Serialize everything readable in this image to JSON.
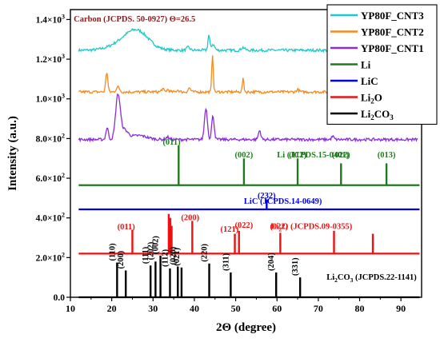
{
  "chart_data": {
    "type": "line",
    "xlabel": "2Θ (degree)",
    "ylabel": "Intensity (a.u.)",
    "xlim": [
      10,
      95
    ],
    "ylim": [
      0,
      1450
    ],
    "x_ticks": [
      10,
      20,
      30,
      40,
      50,
      60,
      70,
      80,
      90
    ],
    "y_ticks": [
      {
        "value": 0,
        "label": "0.0"
      },
      {
        "value": 200,
        "mant": "2.0×10",
        "exp": "2"
      },
      {
        "value": 400,
        "mant": "4.0×10",
        "exp": "2"
      },
      {
        "value": 600,
        "mant": "6.0×10",
        "exp": "2"
      },
      {
        "value": 800,
        "mant": "8.0×10",
        "exp": "2"
      },
      {
        "value": 1000,
        "mant": "1.0×10",
        "exp": "3"
      },
      {
        "value": 1200,
        "mant": "1.2×10",
        "exp": "3"
      },
      {
        "value": 1400,
        "mant": "1.4×10",
        "exp": "3"
      }
    ],
    "grid": false,
    "legend_position": "top-right",
    "annotation": "Carbon (JCPDS. 50-0927)  Θ=26.5",
    "legend": [
      {
        "key": "YP80F_CNT3",
        "label": "YP80F_CNT3",
        "color": "#1ec8c8"
      },
      {
        "key": "YP80F_CNT2",
        "label": "YP80F_CNT2",
        "color": "#f58a1f"
      },
      {
        "key": "YP80F_CNT1",
        "label": "YP80F_CNT1",
        "color": "#8a2be2"
      },
      {
        "key": "Li",
        "label": "Li",
        "color": "#1f7a1f"
      },
      {
        "key": "LiC",
        "label": "LiC",
        "color": "#0000ee"
      },
      {
        "key": "Li2O",
        "label": "Li",
        "sub": "2",
        "tail": "O",
        "color": "#ee1111"
      },
      {
        "key": "Li2CO3",
        "label": "Li",
        "sub": "2",
        "tail": "CO",
        "sub2": "3",
        "color": "#000000"
      }
    ],
    "series": [
      {
        "key": "YP80F_CNT3",
        "color": "#1ec8c8",
        "baseline": 1245,
        "peaks": [
          {
            "x": 24.5,
            "h": 60,
            "w": 3.5
          },
          {
            "x": 26.5,
            "h": 50,
            "w": 2.5
          },
          {
            "x": 38.5,
            "h": 15,
            "w": 0.4
          },
          {
            "x": 43.5,
            "h": 75,
            "w": 0.22
          },
          {
            "x": 44.5,
            "h": 30,
            "w": 0.4
          },
          {
            "x": 51.8,
            "h": 15,
            "w": 0.4
          }
        ]
      },
      {
        "key": "YP80F_CNT2",
        "color": "#f58a1f",
        "baseline": 1035,
        "peaks": [
          {
            "x": 18.8,
            "h": 100,
            "w": 0.25
          },
          {
            "x": 21.5,
            "h": 25,
            "w": 0.4
          },
          {
            "x": 32.3,
            "h": 15,
            "w": 0.3
          },
          {
            "x": 33.6,
            "h": 12,
            "w": 0.3
          },
          {
            "x": 36.0,
            "h": 10,
            "w": 0.3
          },
          {
            "x": 38.8,
            "h": 20,
            "w": 0.3
          },
          {
            "x": 44.4,
            "h": 190,
            "w": 0.18
          },
          {
            "x": 51.8,
            "h": 65,
            "w": 0.2
          },
          {
            "x": 65.0,
            "h": 12,
            "w": 0.3
          },
          {
            "x": 78.0,
            "h": 10,
            "w": 0.3
          }
        ]
      },
      {
        "key": "YP80F_CNT1",
        "color": "#8a2be2",
        "baseline": 795,
        "peaks": [
          {
            "x": 18.9,
            "h": 60,
            "w": 0.3
          },
          {
            "x": 21.5,
            "h": 220,
            "w": 0.55
          },
          {
            "x": 23.0,
            "h": 45,
            "w": 0.9
          },
          {
            "x": 26.5,
            "h": 20,
            "w": 2.0
          },
          {
            "x": 33.5,
            "h": 12,
            "w": 0.4
          },
          {
            "x": 42.8,
            "h": 160,
            "w": 0.35
          },
          {
            "x": 44.5,
            "h": 120,
            "w": 0.3
          },
          {
            "x": 55.8,
            "h": 45,
            "w": 0.3
          },
          {
            "x": 73.5,
            "h": 15,
            "w": 0.3
          }
        ]
      }
    ],
    "references": [
      {
        "key": "Li",
        "color": "#1f7a1f",
        "baseline": 565,
        "label": "Li (JCPDS.15-0401)",
        "label_x": 60,
        "label_y": 705,
        "peaks": [
          {
            "x": 36.2,
            "h": 200,
            "hkl": "(011)",
            "lx": 34.5,
            "ly": 770
          },
          {
            "x": 52.0,
            "h": 135,
            "hkl": "(002)",
            "lx": 52.0,
            "ly": 705
          },
          {
            "x": 65.0,
            "h": 135,
            "hkl": "(112)",
            "lx": 65.0,
            "ly": 705
          },
          {
            "x": 75.5,
            "h": 110,
            "hkl": "(022)",
            "lx": 75.5,
            "ly": 705
          },
          {
            "x": 86.5,
            "h": 110,
            "hkl": "(013)",
            "lx": 86.5,
            "ly": 705
          }
        ]
      },
      {
        "key": "LiC",
        "color": "#0000ee",
        "baseline": 443,
        "label": "LiC (JCPDS.14-0649)",
        "label_x": 52,
        "label_y": 472,
        "peaks": [
          {
            "x": 57.5,
            "h": 50,
            "hkl": "(232)",
            "lx": 57.5,
            "ly": 500
          }
        ]
      },
      {
        "key": "Li2O",
        "color": "#ee1111",
        "baseline": 220,
        "label": "Li",
        "label_sub": "2",
        "label_tail": "O (JCPDS.09-0355)",
        "label_x": 58.5,
        "label_y": 345,
        "peaks": [
          {
            "x": 25.0,
            "h": 120,
            "hkl": "(011)",
            "lx": 23.5,
            "ly": 342
          },
          {
            "x": 33.8,
            "h": 200
          },
          {
            "x": 34.2,
            "h": 180
          },
          {
            "x": 34.5,
            "h": 140
          },
          {
            "x": 39.5,
            "h": 165,
            "hkl": "(200)",
            "lx": 39.0,
            "ly": 388
          },
          {
            "x": 49.8,
            "h": 100,
            "hkl": "(121)",
            "lx": 48.5,
            "ly": 330
          },
          {
            "x": 50.8,
            "h": 115,
            "hkl": "(022)",
            "lx": 52.0,
            "ly": 350
          },
          {
            "x": 60.8,
            "h": 105,
            "hkl": "(022)",
            "lx": 60.5,
            "ly": 345
          },
          {
            "x": 73.8,
            "h": 115
          },
          {
            "x": 83.2,
            "h": 100
          }
        ]
      },
      {
        "key": "Li2CO3",
        "color": "#000000",
        "baseline": 0,
        "label": "Li",
        "label_sub": "2",
        "label_tail": "CO",
        "label_sub2": "3",
        "label_tail2": " (JCPDS.22-1141)",
        "label_x": 72,
        "label_y": 88,
        "peaks": [
          {
            "x": 21.3,
            "h": 175,
            "hkl": "(110)"
          },
          {
            "x": 23.4,
            "h": 135,
            "hkl": "(200)"
          },
          {
            "x": 29.4,
            "h": 160,
            "hkl": "(111)"
          },
          {
            "x": 30.6,
            "h": 180,
            "hkl": "(202)"
          },
          {
            "x": 31.8,
            "h": 210,
            "hkl": "(002)"
          },
          {
            "x": 34.1,
            "h": 145,
            "hkl": "(112)"
          },
          {
            "x": 36.0,
            "h": 155,
            "hkl": "(020)"
          },
          {
            "x": 36.9,
            "h": 150,
            "hkl": "(021)"
          },
          {
            "x": 43.6,
            "h": 170,
            "hkl": "(220)"
          },
          {
            "x": 48.8,
            "h": 125,
            "hkl": "(311)"
          },
          {
            "x": 59.8,
            "h": 125,
            "hkl": "(204)"
          },
          {
            "x": 65.6,
            "h": 100,
            "hkl": "(331)"
          }
        ]
      }
    ]
  }
}
